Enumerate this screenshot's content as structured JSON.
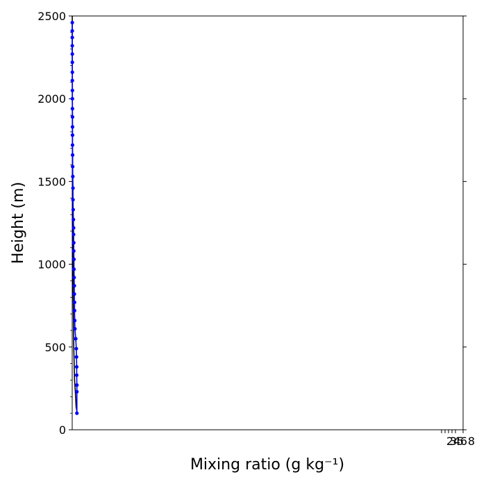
{
  "chart_data": {
    "type": "line",
    "xlabel": "Mixing ratio (g kg⁻¹)",
    "ylabel": "Height (m)",
    "ylim": [
      0,
      2500
    ],
    "y_ticks": [
      "0",
      "500",
      "1000",
      "1500",
      "2000",
      "2500"
    ],
    "x_tick_labels_overlapping": [
      "2",
      "3",
      "4",
      "5",
      "6",
      "8"
    ],
    "grid": false,
    "colors": {
      "black_series": "#000000",
      "blue_series": "#0000ff"
    },
    "series": [
      {
        "color": "black",
        "points": [
          [
            0.12,
            100
          ],
          [
            0.12,
            110
          ],
          [
            0.1,
            140
          ],
          [
            0.08,
            230
          ],
          [
            0.06,
            300
          ],
          [
            0.05,
            400
          ],
          [
            0.04,
            500
          ],
          [
            0.035,
            600
          ],
          [
            0.03,
            700
          ],
          [
            0.025,
            800
          ],
          [
            0.022,
            900
          ],
          [
            0.02,
            1000
          ],
          [
            0.018,
            1100
          ],
          [
            0.015,
            1200
          ],
          [
            0.013,
            1300
          ],
          [
            0.012,
            1400
          ],
          [
            0.012,
            1500
          ],
          [
            0.01,
            1600
          ],
          [
            0.008,
            1650
          ],
          [
            0.005,
            1700
          ],
          [
            0.005,
            1800
          ],
          [
            0.004,
            1900
          ],
          [
            0.003,
            2000
          ],
          [
            0.002,
            2100
          ],
          [
            0.002,
            2200
          ],
          [
            0.001,
            2300
          ],
          [
            0.001,
            2400
          ],
          [
            0.001,
            2500
          ]
        ]
      },
      {
        "color": "blue",
        "marker": "circle",
        "points": [
          [
            0.12,
            100
          ],
          [
            0.12,
            230
          ],
          [
            0.12,
            270
          ],
          [
            0.115,
            330
          ],
          [
            0.115,
            380
          ],
          [
            0.11,
            440
          ],
          [
            0.105,
            490
          ],
          [
            0.09,
            550
          ],
          [
            0.07,
            610
          ],
          [
            0.065,
            660
          ],
          [
            0.06,
            720
          ],
          [
            0.06,
            770
          ],
          [
            0.055,
            820
          ],
          [
            0.055,
            870
          ],
          [
            0.05,
            920
          ],
          [
            0.045,
            970
          ],
          [
            0.045,
            1030
          ],
          [
            0.04,
            1080
          ],
          [
            0.04,
            1130
          ],
          [
            0.035,
            1180
          ],
          [
            0.035,
            1220
          ],
          [
            0.03,
            1270
          ],
          [
            0.025,
            1330
          ],
          [
            0.02,
            1390
          ],
          [
            0.02,
            1460
          ],
          [
            0.015,
            1530
          ],
          [
            0.012,
            1590
          ],
          [
            0.01,
            1660
          ],
          [
            0.008,
            1720
          ],
          [
            0.008,
            1780
          ],
          [
            0.008,
            1830
          ],
          [
            0.008,
            1890
          ],
          [
            0.006,
            1940
          ],
          [
            0.005,
            2000
          ],
          [
            0.005,
            2050
          ],
          [
            0.004,
            2110
          ],
          [
            0.004,
            2160
          ],
          [
            0.003,
            2220
          ],
          [
            0.003,
            2270
          ],
          [
            0.002,
            2320
          ],
          [
            0.002,
            2370
          ],
          [
            0.002,
            2410
          ],
          [
            0.002,
            2460
          ]
        ]
      }
    ]
  }
}
